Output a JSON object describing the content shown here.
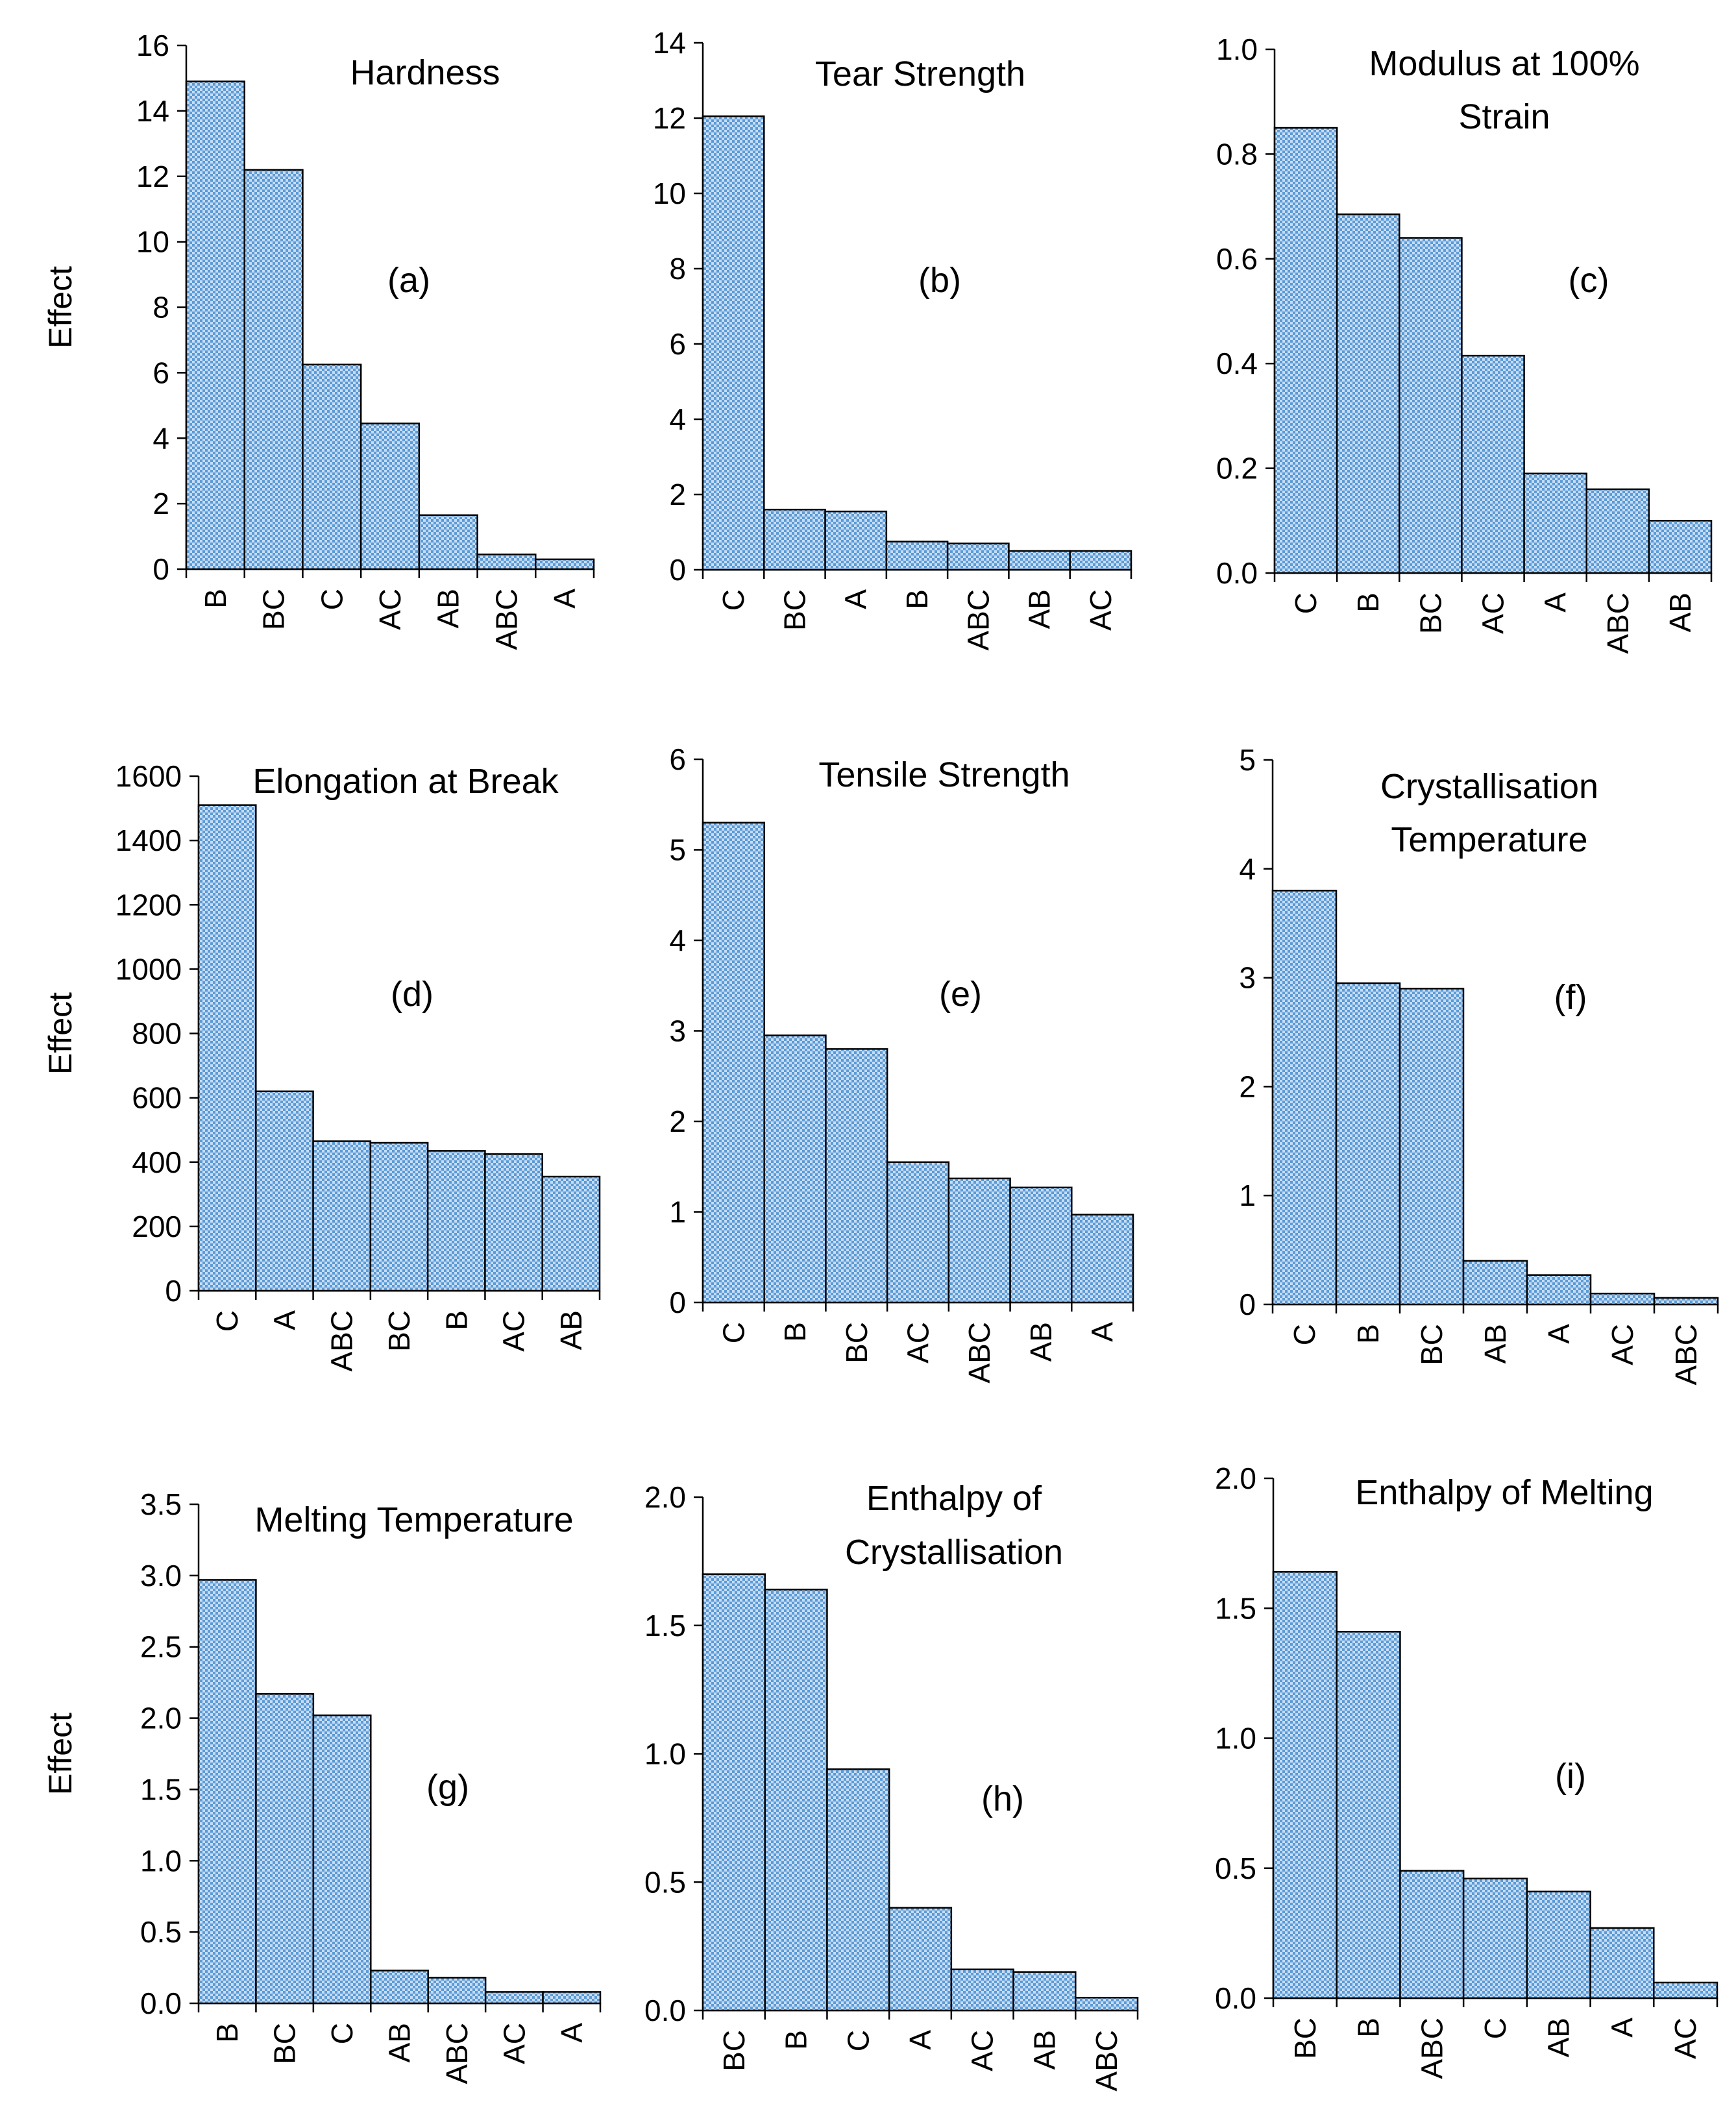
{
  "figure": {
    "y_axis_label": "Effect",
    "bar_fill_colors": {
      "light": "#c7dcf6",
      "dark": "#5b9bd5",
      "outline": "#000000"
    }
  },
  "chart_data": [
    {
      "id": "a",
      "type": "bar",
      "title": "Hardness",
      "panel_label": "(a)",
      "ylabel": "Effect",
      "ylim": [
        0,
        16
      ],
      "yticks": [
        "0",
        "2",
        "4",
        "6",
        "8",
        "10",
        "12",
        "14",
        "16"
      ],
      "categories": [
        "B",
        "BC",
        "C",
        "AC",
        "AB",
        "ABC",
        "A"
      ],
      "values": [
        14.9,
        12.2,
        6.25,
        4.45,
        1.65,
        0.45,
        0.3
      ]
    },
    {
      "id": "b",
      "type": "bar",
      "title": "Tear Strength",
      "panel_label": "(b)",
      "ylabel": "",
      "ylim": [
        0,
        14
      ],
      "yticks": [
        "0",
        "2",
        "4",
        "6",
        "8",
        "10",
        "12",
        "14"
      ],
      "categories": [
        "C",
        "BC",
        "A",
        "B",
        "ABC",
        "AB",
        "AC"
      ],
      "values": [
        12.05,
        1.6,
        1.55,
        0.75,
        0.7,
        0.5,
        0.5
      ]
    },
    {
      "id": "c",
      "type": "bar",
      "title": "Modulus at 100% Strain",
      "title_lines": [
        "Modulus at 100%",
        "Strain"
      ],
      "panel_label": "(c)",
      "ylabel": "",
      "ylim": [
        0,
        1.0
      ],
      "yticks": [
        "0.0",
        "0.2",
        "0.4",
        "0.6",
        "0.8",
        "1.0"
      ],
      "categories": [
        "C",
        "B",
        "BC",
        "AC",
        "A",
        "ABC",
        "AB"
      ],
      "values": [
        0.85,
        0.685,
        0.64,
        0.415,
        0.19,
        0.16,
        0.1
      ]
    },
    {
      "id": "d",
      "type": "bar",
      "title": "Elongation at Break",
      "panel_label": "(d)",
      "ylabel": "Effect",
      "ylim": [
        0,
        1600
      ],
      "yticks": [
        "0",
        "200",
        "400",
        "600",
        "800",
        "1000",
        "1200",
        "1400",
        "1600"
      ],
      "categories": [
        "C",
        "A",
        "ABC",
        "BC",
        "B",
        "AC",
        "AB"
      ],
      "values": [
        1510,
        620,
        465,
        460,
        435,
        425,
        355
      ]
    },
    {
      "id": "e",
      "type": "bar",
      "title": "Tensile Strength",
      "panel_label": "(e)",
      "ylabel": "",
      "ylim": [
        0,
        6
      ],
      "yticks": [
        "0",
        "1",
        "2",
        "3",
        "4",
        "5",
        "6"
      ],
      "categories": [
        "C",
        "B",
        "BC",
        "AC",
        "ABC",
        "AB",
        "A"
      ],
      "values": [
        5.3,
        2.95,
        2.8,
        1.55,
        1.37,
        1.27,
        0.97
      ]
    },
    {
      "id": "f",
      "type": "bar",
      "title": "Crystallisation Temperature",
      "title_lines": [
        "Crystallisation",
        "Temperature"
      ],
      "panel_label": "(f)",
      "ylabel": "",
      "ylim": [
        0,
        5
      ],
      "yticks": [
        "0",
        "1",
        "2",
        "3",
        "4",
        "5"
      ],
      "categories": [
        "C",
        "B",
        "BC",
        "AB",
        "A",
        "AC",
        "ABC"
      ],
      "values": [
        3.8,
        2.95,
        2.9,
        0.4,
        0.27,
        0.1,
        0.06
      ]
    },
    {
      "id": "g",
      "type": "bar",
      "title": "Melting Temperature",
      "panel_label": "(g)",
      "ylabel": "Effect",
      "ylim": [
        0,
        3.5
      ],
      "yticks": [
        "0.0",
        "0.5",
        "1.0",
        "1.5",
        "2.0",
        "2.5",
        "3.0",
        "3.5"
      ],
      "categories": [
        "B",
        "BC",
        "C",
        "AB",
        "ABC",
        "AC",
        "A"
      ],
      "values": [
        2.97,
        2.17,
        2.02,
        0.23,
        0.18,
        0.08,
        0.08
      ]
    },
    {
      "id": "h",
      "type": "bar",
      "title": "Enthalpy of Crystallisation",
      "title_lines": [
        "Enthalpy of",
        "Crystallisation"
      ],
      "panel_label": "(h)",
      "ylabel": "",
      "ylim": [
        0,
        2.0
      ],
      "yticks": [
        "0.0",
        "0.5",
        "1.0",
        "1.5",
        "2.0"
      ],
      "categories": [
        "BC",
        "B",
        "C",
        "A",
        "AC",
        "AB",
        "ABC"
      ],
      "values": [
        1.7,
        1.64,
        0.94,
        0.4,
        0.16,
        0.15,
        0.05
      ]
    },
    {
      "id": "i",
      "type": "bar",
      "title": "Enthalpy of Melting",
      "panel_label": "(i)",
      "ylabel": "",
      "ylim": [
        0,
        2.0
      ],
      "yticks": [
        "0.0",
        "0.5",
        "1.0",
        "1.5",
        "2.0"
      ],
      "categories": [
        "BC",
        "B",
        "ABC",
        "C",
        "AB",
        "A",
        "AC"
      ],
      "values": [
        1.64,
        1.41,
        0.49,
        0.46,
        0.41,
        0.27,
        0.06
      ]
    }
  ]
}
